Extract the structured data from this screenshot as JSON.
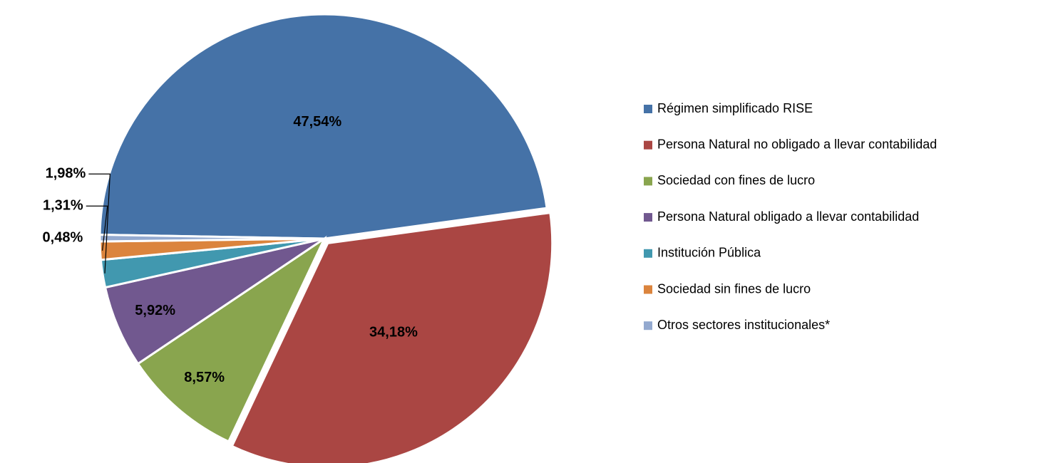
{
  "chart_data": {
    "type": "pie",
    "categories": [
      "Régimen simplificado RISE",
      "Persona Natural no obligado a llevar contabilidad",
      "Sociedad con fines de lucro",
      "Persona Natural obligado a llevar contabilidad",
      "Institución Pública",
      "Sociedad sin fines de lucro",
      "Otros sectores institucionales*"
    ],
    "values": [
      47.54,
      34.18,
      8.57,
      5.92,
      1.98,
      1.31,
      0.48
    ],
    "value_labels": [
      "47,54%",
      "34,18%",
      "8,57%",
      "5,92%",
      "1,98%",
      "1,31%",
      "0,48%"
    ],
    "colors": [
      "#4572a7",
      "#aa4643",
      "#89a54e",
      "#71588f",
      "#4198af",
      "#db843d",
      "#93a9cf"
    ],
    "legend": "right"
  }
}
